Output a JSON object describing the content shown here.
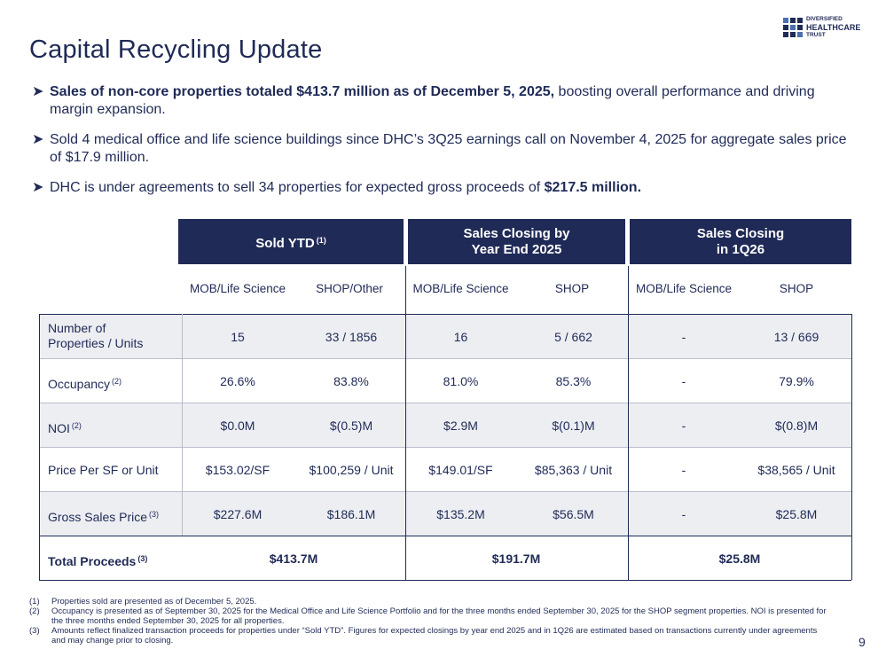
{
  "title": "Capital Recycling Update",
  "logo": {
    "line1": "DIVERSIFIED",
    "line2": "HEALTHCARE",
    "line3": "TRUST"
  },
  "bullets": [
    {
      "bold": "Sales of non-core properties totaled $413.7 million as of December 5, 2025,",
      "text": " boosting overall performance and driving margin expansion."
    },
    {
      "text": "Sold 4 medical office and life science buildings since DHC’s 3Q25 earnings call on November 4, 2025 for aggregate sales price of $17.9 million."
    },
    {
      "text": "DHC is under agreements to sell 34 properties for expected gross proceeds of ",
      "bold": "$217.5 million."
    }
  ],
  "table": {
    "groups": [
      {
        "label": "Sold YTD",
        "sup": "(1)"
      },
      {
        "line1": "Sales Closing by",
        "line2": "Year End 2025"
      },
      {
        "line1": "Sales Closing",
        "line2": "in 1Q26"
      }
    ],
    "subheaders": [
      "MOB/Life Science",
      "SHOP/Other",
      "MOB/Life Science",
      "SHOP",
      "MOB/Life Science",
      "SHOP"
    ],
    "rows": [
      {
        "line1": "Number of",
        "line2": "Properties / Units",
        "values": [
          "15",
          "33 / 1856",
          "16",
          "5 / 662",
          "-",
          "13 / 669"
        ]
      },
      {
        "label": "Occupancy",
        "sup": "(2)",
        "values": [
          "26.6%",
          "83.8%",
          "81.0%",
          "85.3%",
          "-",
          "79.9%"
        ]
      },
      {
        "label": "NOI",
        "sup": "(2)",
        "values": [
          "$0.0M",
          "$(0.5)M",
          "$2.9M",
          "$(0.1)M",
          "-",
          "$(0.8)M"
        ]
      },
      {
        "label": "Price Per SF or Unit",
        "values": [
          "$153.02/SF",
          "$100,259 / Unit",
          "$149.01/SF",
          "$85,363 / Unit",
          "-",
          "$38,565 / Unit"
        ]
      },
      {
        "label": "Gross Sales Price",
        "sup": "(3)",
        "values": [
          "$227.6M",
          "$186.1M",
          "$135.2M",
          "$56.5M",
          "-",
          "$25.8M"
        ]
      }
    ],
    "total": {
      "label": "Total Proceeds",
      "sup": "(3)",
      "values": [
        "$413.7M",
        "$191.7M",
        "$25.8M"
      ]
    }
  },
  "footnotes": [
    {
      "num": "(1)",
      "text": "Properties sold are presented as of December 5, 2025."
    },
    {
      "num": "(2)",
      "text": "Occupancy is presented as of September 30, 2025 for the Medical Office and Life Science Portfolio and for the three months ended September 30, 2025 for the SHOP segment properties. NOI is presented for the three months ended September 30, 2025 for all properties."
    },
    {
      "num": "(3)",
      "text": "Amounts reflect finalized transaction proceeds for properties under “Sold YTD”. Figures for expected closings by year end 2025 and in 1Q26 are estimated based on transactions currently under agreements and may change prior to closing."
    }
  ],
  "page_number": "9"
}
